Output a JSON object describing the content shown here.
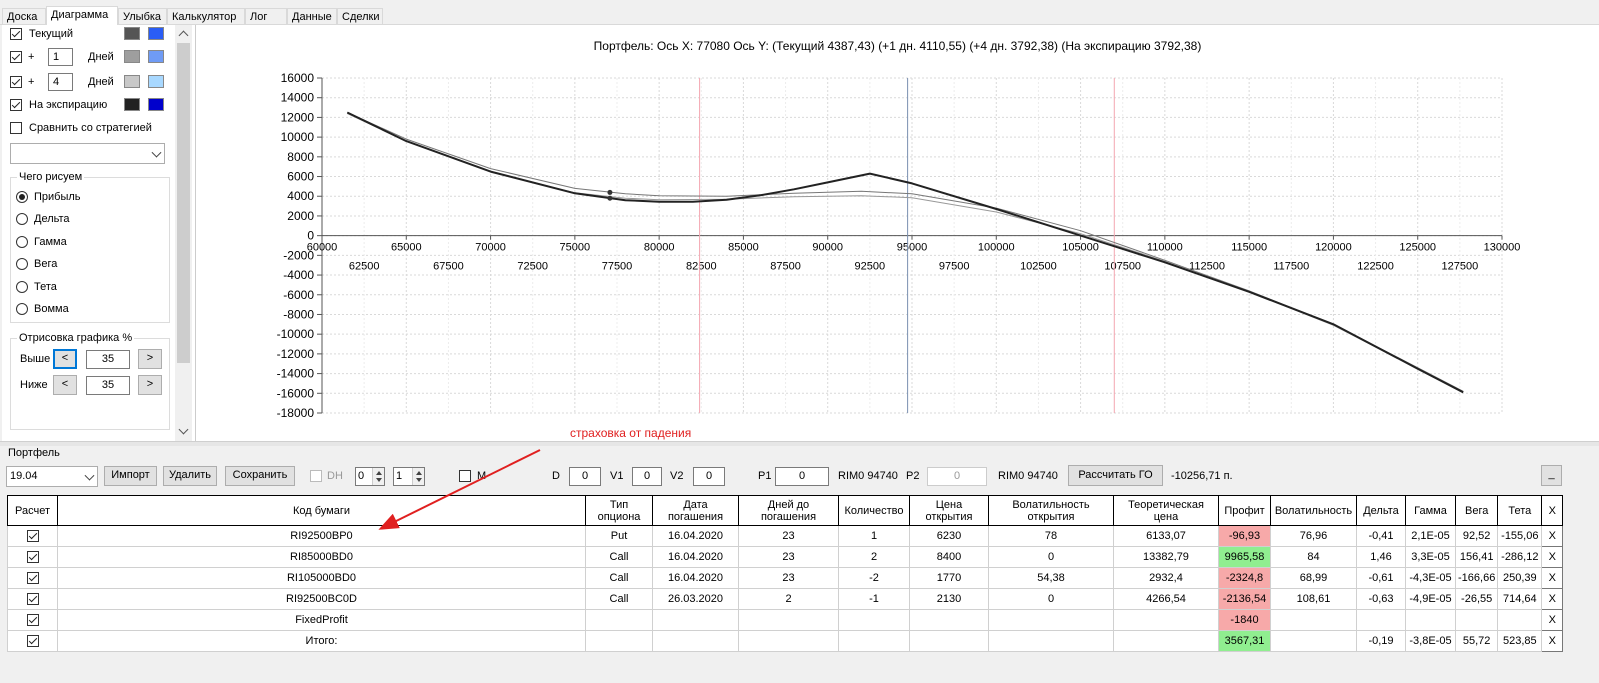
{
  "tabs": [
    "Доска",
    "Диаграмма",
    "Улыбка",
    "Калькулятор",
    "Лог",
    "Данные",
    "Сделки"
  ],
  "active_tab": "Диаграмма",
  "left_panel": {
    "current_label": "Текущий",
    "plus_sign": "+",
    "plus1_days": "1",
    "plus2_days": "4",
    "days_label": "Дней",
    "expiration_label": "На экспирацию",
    "compare_label": "Сравнить со стратегией",
    "what_draw_title": "Чего рисуем",
    "radio_options": [
      "Прибыль",
      "Дельта",
      "Гамма",
      "Вега",
      "Тета",
      "Вомма"
    ],
    "radio_selected": "Прибыль",
    "render_title": "Отрисовка графика %",
    "above_label": "Выше",
    "below_label": "Ниже",
    "above_value": "35",
    "below_value": "35",
    "left_btn": "<",
    "right_btn": ">",
    "swatch_colors": {
      "current": [
        "#555555",
        "#2a5df5"
      ],
      "plus1": [
        "#9e9e9e",
        "#6f9bf5"
      ],
      "plus2": [
        "#c8c8c8",
        "#a8d8ff"
      ],
      "expiration": [
        "#222222",
        "#0000cc"
      ]
    }
  },
  "chart": {
    "header": "Портфель: Ось X: 77080 Ось Y:  (Текущий 4387,43)  (+1 дн. 4110,55)  (+4 дн. 3792,38)  (На экспирацию 3792,38)"
  },
  "chart_data": {
    "type": "line",
    "xlim": [
      60000,
      130000
    ],
    "ylim": [
      -18000,
      16000
    ],
    "x_ticks_upper": [
      60000,
      65000,
      70000,
      75000,
      80000,
      85000,
      90000,
      95000,
      100000,
      105000,
      110000,
      115000,
      120000,
      125000,
      130000
    ],
    "x_ticks_lower": [
      62500,
      67500,
      72500,
      77500,
      82500,
      87500,
      92500,
      97500,
      102500,
      107500,
      112500,
      117500,
      122500,
      127500
    ],
    "y_ticks": [
      16000,
      14000,
      12000,
      10000,
      8000,
      6000,
      4000,
      2000,
      0,
      -2000,
      -4000,
      -6000,
      -8000,
      -10000,
      -12000,
      -14000,
      -16000,
      -18000
    ],
    "vlines": [
      {
        "x": 82400,
        "color": "#f4a6b0"
      },
      {
        "x": 94740,
        "color": "#7a8fb0"
      },
      {
        "x": 107000,
        "color": "#f4a6b0"
      }
    ],
    "markers": [
      {
        "x": 77080,
        "y": 4387
      },
      {
        "x": 77080,
        "y": 3792
      }
    ],
    "series": [
      {
        "color": "#222222",
        "width": 2,
        "x": [
          61500,
          65000,
          70000,
          75000,
          78000,
          80000,
          82000,
          84000,
          86000,
          88000,
          90000,
          92500,
          95000,
          100000,
          105000,
          110000,
          115000,
          120000,
          125000,
          127700
        ],
        "y": [
          12500,
          9600,
          6500,
          4300,
          3600,
          3450,
          3450,
          3650,
          4100,
          4700,
          5400,
          6300,
          5300,
          2700,
          0,
          -2700,
          -5700,
          -9000,
          -13500,
          -15900
        ]
      },
      {
        "color": "#777777",
        "width": 1,
        "x": [
          61500,
          65000,
          70000,
          75000,
          78000,
          80000,
          84000,
          88000,
          92000,
          95000,
          100000,
          105000,
          110000,
          115000,
          120000,
          125000,
          127700
        ],
        "y": [
          12500,
          9800,
          6800,
          4800,
          4250,
          4050,
          4000,
          4300,
          4500,
          4250,
          2800,
          500,
          -2500,
          -5600,
          -9000,
          -13400,
          -15800
        ]
      },
      {
        "color": "#999999",
        "width": 1,
        "x": [
          61500,
          65000,
          70000,
          75000,
          78000,
          80000,
          84000,
          88000,
          92000,
          95000,
          100000,
          105000,
          110000,
          115000,
          120000,
          125000,
          127700
        ],
        "y": [
          12400,
          9600,
          6500,
          4350,
          3800,
          3650,
          3700,
          3950,
          4050,
          3850,
          2400,
          200,
          -2600,
          -5700,
          -9100,
          -13500,
          -15900
        ]
      }
    ]
  },
  "annotation": {
    "text": "страховка от падения"
  },
  "portfolio": {
    "label": "Портфель",
    "date_value": "19.04",
    "import_btn": "Импорт",
    "delete_btn": "Удалить",
    "save_btn": "Сохранить",
    "dh_label": "DH",
    "dh_spin1": "0",
    "dh_spin2": "1",
    "m_label": "M",
    "d_label": "D",
    "d_value": "0",
    "v1_label": "V1",
    "v1_value": "0",
    "v2_label": "V2",
    "v2_value": "0",
    "p1_label": "P1",
    "p1_value": "0",
    "rim1": "RIM0 94740",
    "p2_label": "P2",
    "p2_value": "0",
    "rim2": "RIM0 94740",
    "calc_btn": "Рассчитать ГО",
    "go_value": "-10256,71 п.",
    "minimize_btn": "_"
  },
  "table": {
    "headers": [
      "Расчет",
      "Код бумаги",
      "Тип опциона",
      "Дата погашения",
      "Дней до погашения",
      "Количество",
      "Цена открытия",
      "Волатильность открытия",
      "Теоретическая цена",
      "Профит",
      "Волатильность",
      "Дельта",
      "Гамма",
      "Вега",
      "Тета",
      "X"
    ],
    "rows": [
      {
        "code": "RI92500BP0",
        "type": "Put",
        "date": "16.04.2020",
        "days": "23",
        "qty": "1",
        "open_price": "6230",
        "open_vol": "78",
        "theo": "6133,07",
        "profit": "-96,93",
        "vol": "76,96",
        "delta": "-0,41",
        "gamma": "2,1E-05",
        "vega": "92,52",
        "theta": "-155,06",
        "x": "X",
        "profit_sign": "neg"
      },
      {
        "code": "RI85000BD0",
        "type": "Call",
        "date": "16.04.2020",
        "days": "23",
        "qty": "2",
        "open_price": "8400",
        "open_vol": "0",
        "theo": "13382,79",
        "profit": "9965,58",
        "vol": "84",
        "delta": "1,46",
        "gamma": "3,3E-05",
        "vega": "156,41",
        "theta": "-286,12",
        "x": "X",
        "profit_sign": "pos"
      },
      {
        "code": "RI105000BD0",
        "type": "Call",
        "date": "16.04.2020",
        "days": "23",
        "qty": "-2",
        "open_price": "1770",
        "open_vol": "54,38",
        "theo": "2932,4",
        "profit": "-2324,8",
        "vol": "68,99",
        "delta": "-0,61",
        "gamma": "-4,3E-05",
        "vega": "-166,66",
        "theta": "250,39",
        "x": "X",
        "profit_sign": "neg"
      },
      {
        "code": "RI92500BC0D",
        "type": "Call",
        "date": "26.03.2020",
        "days": "2",
        "qty": "-1",
        "open_price": "2130",
        "open_vol": "0",
        "theo": "4266,54",
        "profit": "-2136,54",
        "vol": "108,61",
        "delta": "-0,63",
        "gamma": "-4,9E-05",
        "vega": "-26,55",
        "theta": "714,64",
        "x": "X",
        "profit_sign": "neg"
      },
      {
        "code": "FixedProfit",
        "type": "",
        "date": "",
        "days": "",
        "qty": "",
        "open_price": "",
        "open_vol": "",
        "theo": "",
        "profit": "-1840",
        "vol": "",
        "delta": "",
        "gamma": "",
        "vega": "",
        "theta": "",
        "x": "X",
        "profit_sign": "neg"
      },
      {
        "code": "Итого:",
        "type": "",
        "date": "",
        "days": "",
        "qty": "",
        "open_price": "",
        "open_vol": "",
        "theo": "",
        "profit": "3567,31",
        "vol": "",
        "delta": "-0,19",
        "gamma": "-3,8E-05",
        "vega": "55,72",
        "theta": "523,85",
        "x": "X",
        "profit_sign": "pos"
      }
    ]
  }
}
